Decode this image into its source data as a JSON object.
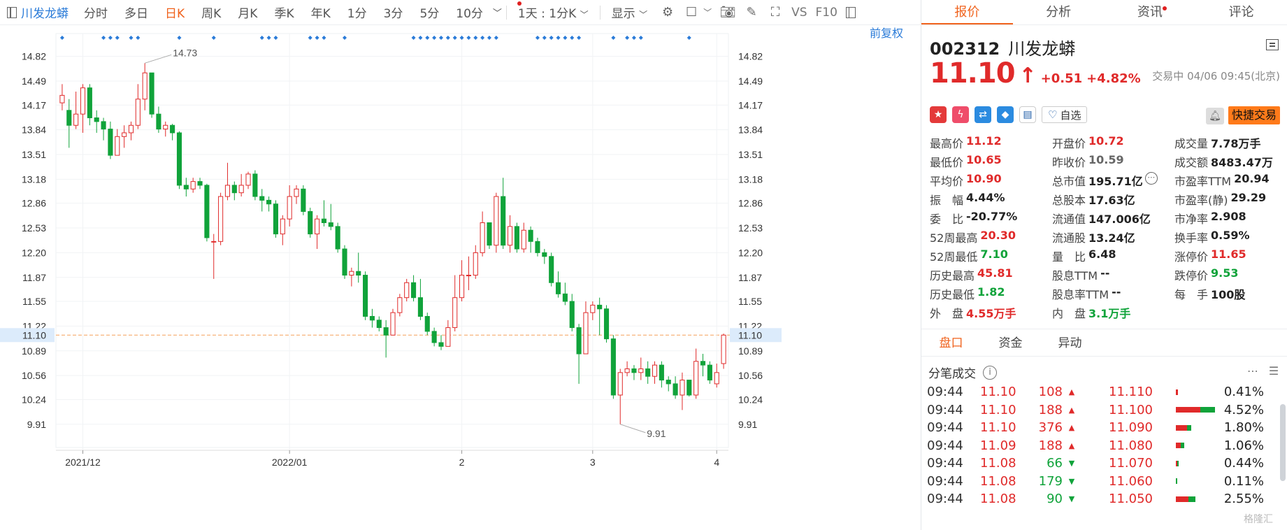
{
  "toolbar": {
    "stock_name": "川发龙蟒",
    "periods": [
      "分时",
      "多日",
      "日K",
      "周K",
      "月K",
      "季K",
      "年K",
      "1分",
      "3分",
      "5分",
      "10分"
    ],
    "active_period": "日K",
    "period_more": "﹀",
    "layout_select": "1天 : 1分K",
    "display_select": "显示",
    "vs_label": "VS",
    "f10_label": "F10"
  },
  "chart": {
    "adjust_label": "前复权",
    "y_ticks": [
      "14.82",
      "14.49",
      "14.17",
      "13.84",
      "13.51",
      "13.18",
      "12.86",
      "12.53",
      "12.20",
      "11.87",
      "11.55",
      "11.22",
      "10.89",
      "10.56",
      "10.24",
      "9.91"
    ],
    "current_price_label": "11.10",
    "x_labels": [
      "2021/12",
      "2022/01",
      "2",
      "3",
      "4"
    ],
    "high_label": "14.73",
    "low_label": "9.91"
  },
  "chart_data": {
    "type": "candlestick",
    "ylim": [
      9.6,
      15.05
    ],
    "current_price": 11.1,
    "high": 14.73,
    "low": 9.91,
    "candles": [
      [
        14.2,
        14.3,
        14.45,
        14.1
      ],
      [
        14.1,
        13.9,
        14.25,
        13.6
      ],
      [
        13.9,
        14.05,
        14.35,
        13.85
      ],
      [
        14.05,
        14.4,
        14.45,
        13.8
      ],
      [
        14.4,
        14.0,
        14.45,
        13.9
      ],
      [
        14.0,
        13.95,
        14.1,
        13.8
      ],
      [
        13.95,
        13.85,
        14.0,
        13.7
      ],
      [
        13.85,
        13.5,
        13.95,
        13.45
      ],
      [
        13.5,
        13.75,
        13.85,
        13.5
      ],
      [
        13.75,
        13.8,
        13.9,
        13.6
      ],
      [
        13.8,
        13.9,
        13.95,
        13.7
      ],
      [
        13.9,
        14.25,
        14.45,
        13.85
      ],
      [
        14.25,
        14.6,
        14.73,
        14.1
      ],
      [
        14.6,
        14.05,
        14.6,
        14.0
      ],
      [
        14.05,
        13.85,
        14.15,
        13.8
      ],
      [
        13.85,
        13.9,
        13.95,
        13.75
      ],
      [
        13.9,
        13.8,
        13.92,
        13.7
      ],
      [
        13.8,
        13.1,
        13.82,
        13.05
      ],
      [
        13.1,
        13.05,
        13.2,
        12.95
      ],
      [
        13.05,
        13.15,
        13.2,
        13.0
      ],
      [
        13.15,
        13.1,
        13.2,
        13.05
      ],
      [
        13.1,
        12.4,
        13.12,
        12.35
      ],
      [
        12.35,
        12.35,
        12.45,
        11.85
      ],
      [
        12.35,
        12.95,
        13.0,
        12.3
      ],
      [
        12.95,
        13.1,
        13.4,
        12.9
      ],
      [
        13.1,
        13.0,
        13.15,
        12.9
      ],
      [
        13.0,
        13.1,
        13.25,
        12.95
      ],
      [
        13.1,
        13.25,
        13.28,
        13.05
      ],
      [
        13.25,
        12.95,
        13.3,
        12.9
      ],
      [
        12.95,
        12.9,
        13.05,
        12.75
      ],
      [
        12.9,
        12.85,
        12.95,
        12.75
      ],
      [
        12.85,
        12.45,
        12.9,
        12.4
      ],
      [
        12.45,
        12.65,
        12.7,
        12.3
      ],
      [
        12.65,
        12.95,
        13.1,
        12.55
      ],
      [
        12.95,
        13.05,
        13.1,
        12.85
      ],
      [
        13.05,
        12.75,
        13.1,
        12.7
      ],
      [
        12.75,
        12.45,
        12.8,
        12.4
      ],
      [
        12.45,
        12.65,
        12.7,
        12.25
      ],
      [
        12.65,
        12.6,
        12.9,
        12.55
      ],
      [
        12.6,
        12.55,
        12.85,
        12.5
      ],
      [
        12.55,
        12.25,
        12.6,
        12.2
      ],
      [
        12.25,
        11.9,
        12.3,
        11.85
      ],
      [
        11.9,
        11.95,
        12.0,
        11.75
      ],
      [
        11.95,
        11.9,
        12.2,
        11.8
      ],
      [
        11.9,
        11.35,
        11.95,
        11.3
      ],
      [
        11.35,
        11.3,
        11.45,
        11.2
      ],
      [
        11.3,
        11.2,
        11.35,
        11.15
      ],
      [
        11.2,
        11.1,
        11.3,
        10.8
      ],
      [
        11.1,
        11.4,
        11.45,
        11.1
      ],
      [
        11.4,
        11.6,
        11.65,
        11.35
      ],
      [
        11.6,
        11.8,
        11.85,
        11.55
      ],
      [
        11.8,
        11.6,
        11.9,
        11.55
      ],
      [
        11.6,
        11.35,
        11.85,
        11.3
      ],
      [
        11.35,
        11.15,
        11.4,
        11.1
      ],
      [
        11.15,
        11.0,
        11.2,
        10.95
      ],
      [
        11.0,
        10.95,
        11.1,
        10.9
      ],
      [
        10.95,
        11.2,
        11.3,
        10.95
      ],
      [
        11.2,
        11.6,
        11.9,
        11.15
      ],
      [
        11.6,
        11.9,
        12.1,
        11.55
      ],
      [
        11.9,
        11.9,
        12.15,
        11.7
      ],
      [
        11.9,
        12.2,
        12.3,
        11.85
      ],
      [
        12.2,
        12.6,
        12.75,
        12.15
      ],
      [
        12.6,
        12.3,
        12.6,
        12.25
      ],
      [
        12.3,
        12.95,
        13.0,
        12.2
      ],
      [
        12.95,
        12.3,
        13.2,
        12.25
      ],
      [
        12.3,
        12.55,
        12.7,
        12.2
      ],
      [
        12.55,
        12.25,
        12.6,
        12.2
      ],
      [
        12.25,
        12.5,
        12.6,
        12.2
      ],
      [
        12.5,
        12.35,
        12.55,
        12.2
      ],
      [
        12.35,
        12.2,
        12.4,
        12.15
      ],
      [
        12.2,
        12.15,
        12.25,
        12.05
      ],
      [
        12.15,
        11.8,
        12.2,
        11.75
      ],
      [
        11.8,
        11.65,
        11.95,
        11.6
      ],
      [
        11.65,
        11.55,
        11.8,
        11.5
      ],
      [
        11.55,
        11.2,
        11.65,
        11.15
      ],
      [
        11.2,
        10.85,
        11.25,
        10.45
      ],
      [
        10.85,
        11.4,
        11.55,
        10.85
      ],
      [
        11.4,
        11.5,
        11.55,
        11.3
      ],
      [
        11.5,
        11.45,
        11.6,
        11.1
      ],
      [
        11.45,
        11.05,
        11.5,
        11.0
      ],
      [
        11.05,
        10.3,
        11.1,
        10.25
      ],
      [
        10.3,
        10.6,
        10.65,
        9.91
      ],
      [
        10.6,
        10.65,
        10.75,
        10.55
      ],
      [
        10.65,
        10.6,
        10.7,
        10.5
      ],
      [
        10.6,
        10.65,
        10.8,
        10.5
      ],
      [
        10.65,
        10.55,
        10.75,
        10.45
      ],
      [
        10.55,
        10.7,
        10.75,
        10.45
      ],
      [
        10.7,
        10.5,
        10.75,
        10.4
      ],
      [
        10.5,
        10.45,
        10.55,
        10.35
      ],
      [
        10.45,
        10.3,
        10.55,
        10.25
      ],
      [
        10.3,
        10.5,
        10.6,
        10.1
      ],
      [
        10.5,
        10.3,
        10.5,
        10.28
      ],
      [
        10.3,
        10.75,
        10.92,
        10.25
      ],
      [
        10.75,
        10.7,
        10.85,
        10.55
      ],
      [
        10.7,
        10.5,
        10.75,
        10.45
      ],
      [
        10.45,
        10.6,
        10.72,
        10.4
      ],
      [
        10.72,
        11.1,
        11.12,
        10.65
      ]
    ],
    "signal_dots": [
      0,
      6,
      7,
      8,
      10,
      11,
      17,
      22,
      29,
      30,
      31,
      36,
      37,
      38,
      41,
      51,
      52,
      53,
      54,
      55,
      56,
      57,
      58,
      59,
      60,
      61,
      62,
      63,
      69,
      70,
      71,
      72,
      73,
      74,
      75,
      80,
      82,
      83,
      84,
      91
    ]
  },
  "tabs": [
    {
      "label": "报价",
      "active": true,
      "dot": false
    },
    {
      "label": "分析",
      "active": false,
      "dot": false
    },
    {
      "label": "资讯",
      "active": false,
      "dot": true
    },
    {
      "label": "评论",
      "active": false,
      "dot": false
    }
  ],
  "quote": {
    "code": "002312",
    "name": "川发龙蟒",
    "price": "11.10",
    "arrow": "↑",
    "change": "+0.51",
    "change_pct": "+4.82%",
    "status": "交易中 04/06 09:45(北京)",
    "watch_label": "自选",
    "trade_label": "快捷交易"
  },
  "stats": [
    [
      {
        "label": "最高价",
        "value": "11.12",
        "color": "red"
      },
      {
        "label": "开盘价",
        "value": "10.72",
        "color": "red"
      },
      {
        "label": "成交量",
        "value": "7.78万手",
        "color": ""
      }
    ],
    [
      {
        "label": "最低价",
        "value": "10.65",
        "color": "red"
      },
      {
        "label": "昨收价",
        "value": "10.59",
        "color": "gray"
      },
      {
        "label": "成交额",
        "value": "8483.47万",
        "color": ""
      }
    ],
    [
      {
        "label": "平均价",
        "value": "10.90",
        "color": "red"
      },
      {
        "label": "总市值",
        "value": "195.71亿",
        "color": "",
        "more": true
      },
      {
        "label": "市盈率TTM",
        "value": "20.94",
        "color": ""
      }
    ],
    [
      {
        "label": "振　幅",
        "value": "4.44%",
        "color": ""
      },
      {
        "label": "总股本",
        "value": "17.63亿",
        "color": ""
      },
      {
        "label": "市盈率(静)",
        "value": "29.29",
        "color": ""
      }
    ],
    [
      {
        "label": "委　比",
        "value": "-20.77%",
        "color": ""
      },
      {
        "label": "流通值",
        "value": "147.006亿",
        "color": ""
      },
      {
        "label": "市净率",
        "value": "2.908",
        "color": ""
      }
    ],
    [
      {
        "label": "52周最高",
        "value": "20.30",
        "color": "red"
      },
      {
        "label": "流通股",
        "value": "13.24亿",
        "color": ""
      },
      {
        "label": "换手率",
        "value": "0.59%",
        "color": ""
      }
    ],
    [
      {
        "label": "52周最低",
        "value": "7.10",
        "color": "green"
      },
      {
        "label": "量　比",
        "value": "6.48",
        "color": ""
      },
      {
        "label": "涨停价",
        "value": "11.65",
        "color": "red"
      }
    ],
    [
      {
        "label": "历史最高",
        "value": "45.81",
        "color": "red"
      },
      {
        "label": "股息TTM",
        "value": "--",
        "color": ""
      },
      {
        "label": "跌停价",
        "value": "9.53",
        "color": "green"
      }
    ],
    [
      {
        "label": "历史最低",
        "value": "1.82",
        "color": "green"
      },
      {
        "label": "股息率TTM",
        "value": "--",
        "color": ""
      },
      {
        "label": "每　手",
        "value": "100股",
        "color": ""
      }
    ],
    [
      {
        "label": "外　盘",
        "value": "4.55万手",
        "color": "red"
      },
      {
        "label": "内　盘",
        "value": "3.1万手",
        "color": "green"
      },
      {
        "label": "",
        "value": "",
        "color": ""
      }
    ]
  ],
  "sub_tabs": [
    {
      "label": "盘口",
      "active": true
    },
    {
      "label": "资金",
      "active": false
    },
    {
      "label": "异动",
      "active": false
    }
  ],
  "ticks_title": "分笔成交",
  "ticks": [
    {
      "time": "09:44",
      "price": "11.10",
      "vol": "108",
      "dir": "up"
    },
    {
      "time": "09:44",
      "price": "11.10",
      "vol": "188",
      "dir": "up"
    },
    {
      "time": "09:44",
      "price": "11.10",
      "vol": "376",
      "dir": "up"
    },
    {
      "time": "09:44",
      "price": "11.09",
      "vol": "188",
      "dir": "up"
    },
    {
      "time": "09:44",
      "price": "11.08",
      "vol": "66",
      "dir": "down"
    },
    {
      "time": "09:44",
      "price": "11.08",
      "vol": "179",
      "dir": "down"
    },
    {
      "time": "09:44",
      "price": "11.08",
      "vol": "90",
      "dir": "down"
    }
  ],
  "depth": [
    {
      "price": "11.110",
      "pct": "0.41%",
      "red": 0.06,
      "green": 0.0
    },
    {
      "price": "11.100",
      "pct": "4.52%",
      "red": 0.62,
      "green": 0.38
    },
    {
      "price": "11.090",
      "pct": "1.80%",
      "red": 0.28,
      "green": 0.12
    },
    {
      "price": "11.080",
      "pct": "1.06%",
      "red": 0.12,
      "green": 0.1
    },
    {
      "price": "11.070",
      "pct": "0.44%",
      "red": 0.04,
      "green": 0.03
    },
    {
      "price": "11.060",
      "pct": "0.11%",
      "red": 0.0,
      "green": 0.02
    },
    {
      "price": "11.050",
      "pct": "2.55%",
      "red": 0.32,
      "green": 0.18
    }
  ],
  "watermark": "格隆汇",
  "colors": {
    "up": "#e02a2a",
    "down": "#10a33a",
    "accent": "#f0621c",
    "dot": "#2a7bd8",
    "priceline": "#f5a05a"
  }
}
